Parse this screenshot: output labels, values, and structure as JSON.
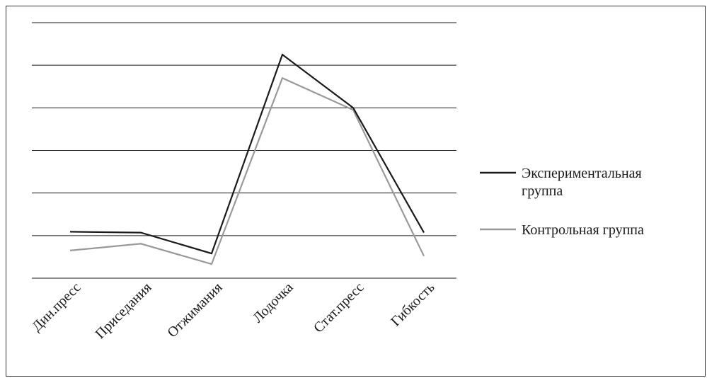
{
  "chart_data": {
    "type": "line",
    "title": "",
    "xlabel": "",
    "ylabel": "",
    "categories": [
      "Дин.пресс",
      "Приседания",
      "Отжимания",
      "Лодочка",
      "Стат.пресс",
      "Гибкость"
    ],
    "ylim": [
      0,
      6
    ],
    "grid": true,
    "y_tick_labels_shown": false,
    "legend_position": "right",
    "series": [
      {
        "name": "Экспериментальная группа",
        "name_lines": [
          "Экспериментальная",
          "группа"
        ],
        "color": "#1a1a1a",
        "values": [
          1.09,
          1.07,
          0.58,
          5.25,
          4.0,
          1.07
        ]
      },
      {
        "name": "Контрольная группа",
        "name_lines": [
          "Контрольная группа"
        ],
        "color": "#999999",
        "values": [
          0.65,
          0.81,
          0.33,
          4.7,
          3.95,
          0.52
        ]
      }
    ]
  }
}
